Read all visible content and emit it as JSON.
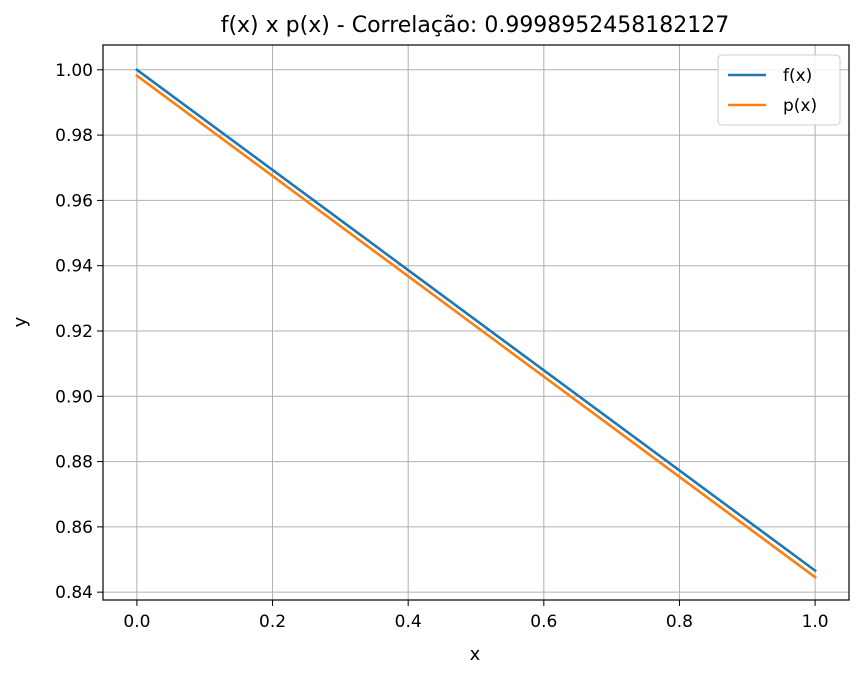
{
  "chart_data": {
    "type": "line",
    "title": "f(x) x p(x) - Correlação: 0.9998952458182127",
    "xlabel": "x",
    "ylabel": "y",
    "xlim": [
      -0.05,
      1.05
    ],
    "ylim": [
      0.8376,
      1.0076
    ],
    "xticks": [
      0.0,
      0.2,
      0.4,
      0.6,
      0.8,
      1.0
    ],
    "xtick_labels": [
      "0.0",
      "0.2",
      "0.4",
      "0.6",
      "0.8",
      "1.0"
    ],
    "yticks": [
      0.84,
      0.86,
      0.88,
      0.9,
      0.92,
      0.94,
      0.96,
      0.98,
      1.0
    ],
    "ytick_labels": [
      "0.84",
      "0.86",
      "0.88",
      "0.90",
      "0.92",
      "0.94",
      "0.96",
      "0.98",
      "1.00"
    ],
    "grid": true,
    "legend_position": "top-right",
    "series": [
      {
        "name": "f(x)",
        "color": "#1f77b4",
        "x": [
          0.0,
          1.0
        ],
        "y": [
          1.0,
          0.8466
        ]
      },
      {
        "name": "p(x)",
        "color": "#ff7f0e",
        "x": [
          0.0,
          1.0
        ],
        "y": [
          0.9982,
          0.8446
        ]
      }
    ]
  }
}
